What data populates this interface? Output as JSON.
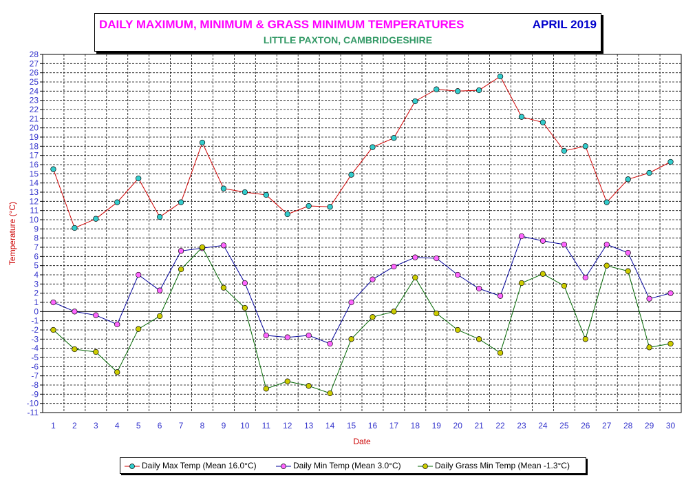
{
  "title": {
    "main": "DAILY MAXIMUM, MINIMUM & GRASS MINIMUM TEMPERATURES",
    "period": "APRIL 2019",
    "location": "LITTLE PAXTON, CAMBRIDGESHIRE"
  },
  "chart_data": {
    "type": "line",
    "xlabel": "Date",
    "ylabel": "Temperature (°C)",
    "ylim": [
      -11,
      28
    ],
    "grid": true,
    "legend_position": "bottom",
    "x": [
      1,
      2,
      3,
      4,
      5,
      6,
      7,
      8,
      9,
      10,
      11,
      12,
      13,
      14,
      15,
      16,
      17,
      18,
      19,
      20,
      21,
      22,
      23,
      24,
      25,
      26,
      27,
      28,
      29,
      30
    ],
    "y_ticks": [
      28,
      27,
      26,
      25,
      24,
      23,
      22,
      21,
      20,
      19,
      18,
      17,
      16,
      15,
      14,
      13,
      12,
      11,
      10,
      9,
      8,
      7,
      6,
      5,
      4,
      3,
      2,
      1,
      0,
      -1,
      -2,
      -3,
      -4,
      -5,
      -6,
      -7,
      -8,
      -9,
      -10,
      -11
    ],
    "series": [
      {
        "name": "Daily Max Temp (Mean 16.0°C)",
        "line_color": "#cc0000",
        "marker_color": "#33cccc",
        "values": [
          15.5,
          9.1,
          10.1,
          11.9,
          14.5,
          10.3,
          11.9,
          18.4,
          13.4,
          13.0,
          12.7,
          10.6,
          11.5,
          11.4,
          14.9,
          17.9,
          18.9,
          22.9,
          24.2,
          24.0,
          24.1,
          25.6,
          21.2,
          20.6,
          17.5,
          18.0,
          11.9,
          14.4,
          15.1,
          16.3
        ]
      },
      {
        "name": "Daily Min Temp (Mean 3.0°C)",
        "line_color": "#000099",
        "marker_color": "#ff66ff",
        "values": [
          1.0,
          0.0,
          -0.4,
          -1.4,
          4.0,
          2.3,
          6.6,
          6.9,
          7.2,
          3.1,
          -2.6,
          -2.8,
          -2.6,
          -3.5,
          1.0,
          3.5,
          4.9,
          5.9,
          5.8,
          4.0,
          2.5,
          1.7,
          8.2,
          7.7,
          7.3,
          3.7,
          7.3,
          6.4,
          1.4,
          2.0
        ]
      },
      {
        "name": "Daily Grass Min Temp (Mean -1.3°C)",
        "line_color": "#006600",
        "marker_color": "#cccc00",
        "values": [
          -2.0,
          -4.1,
          -4.4,
          -6.6,
          -1.9,
          -0.5,
          4.6,
          7.0,
          2.6,
          0.4,
          -8.4,
          -7.6,
          -8.1,
          -8.9,
          -3.0,
          -0.6,
          0.0,
          3.7,
          -0.2,
          -2.0,
          -3.0,
          -4.5,
          3.1,
          4.1,
          2.8,
          -3.0,
          5.0,
          4.4,
          -3.9,
          -3.5
        ]
      }
    ]
  }
}
